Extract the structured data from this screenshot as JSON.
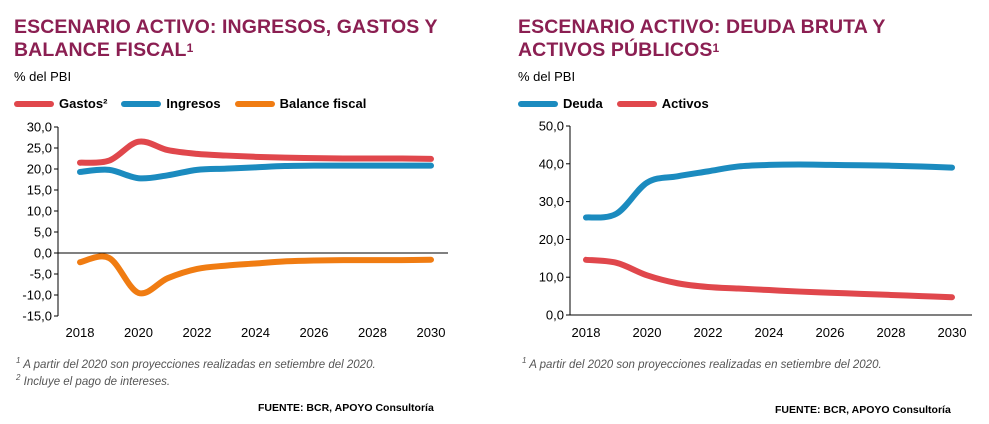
{
  "left": {
    "title_line1": "ESCENARIO ACTIVO: INGRESOS, GASTOS Y",
    "title_line2": "BALANCE FISCAL",
    "title_sup": "1",
    "unit": "% del PBI",
    "note1_sup": "1",
    "note1": " A partir del 2020 son proyecciones realizadas  en setiembre del 2020.",
    "note2_sup": "2",
    "note2": " Incluye el pago de intereses.",
    "source": "FUENTE: BCR, APOYO Consultoría"
  },
  "right": {
    "title_line1": "ESCENARIO ACTIVO: DEUDA BRUTA Y",
    "title_line2": "ACTIVOS PÚBLICOS",
    "title_sup": "1",
    "unit": "% del PBI",
    "note1_sup": "1",
    "note1": " A partir del 2020 son proyecciones realizadas  en setiembre del 2020.",
    "source": "FUENTE: BCR, APOYO Consultoría"
  },
  "chart_data": [
    {
      "type": "line",
      "x": [
        2018,
        2019,
        2020,
        2021,
        2022,
        2023,
        2024,
        2025,
        2026,
        2027,
        2028,
        2029,
        2030
      ],
      "xticks": [
        "2018",
        "2020",
        "2022",
        "2024",
        "2026",
        "2028",
        "2030"
      ],
      "yticks": [
        "30,0",
        "25,0",
        "20,0",
        "15,0",
        "10,0",
        "5,0",
        "0,0",
        "-5,0",
        "-10,0",
        "-15,0"
      ],
      "ylim": [
        -15,
        30
      ],
      "series": [
        {
          "name": "Gastos²",
          "color": "#e0474c",
          "values": [
            21.5,
            22.0,
            26.5,
            24.5,
            23.6,
            23.2,
            22.9,
            22.7,
            22.6,
            22.5,
            22.5,
            22.5,
            22.4
          ]
        },
        {
          "name": "Ingresos",
          "color": "#1b8bbf",
          "values": [
            19.3,
            19.8,
            17.8,
            18.5,
            19.8,
            20.1,
            20.4,
            20.7,
            20.8,
            20.8,
            20.8,
            20.8,
            20.8
          ]
        },
        {
          "name": "Balance fiscal",
          "color": "#f07c12",
          "values": [
            -2.2,
            -1.2,
            -9.5,
            -6.0,
            -3.8,
            -3.0,
            -2.5,
            -2.0,
            -1.8,
            -1.7,
            -1.7,
            -1.7,
            -1.6
          ]
        }
      ]
    },
    {
      "type": "line",
      "x": [
        2018,
        2019,
        2020,
        2021,
        2022,
        2023,
        2024,
        2025,
        2026,
        2027,
        2028,
        2029,
        2030
      ],
      "xticks": [
        "2018",
        "2020",
        "2022",
        "2024",
        "2026",
        "2028",
        "2030"
      ],
      "yticks": [
        "50,0",
        "40,0",
        "30,0",
        "20,0",
        "10,0",
        "0,0"
      ],
      "ylim": [
        0,
        50
      ],
      "series": [
        {
          "name": "Deuda",
          "color": "#1b8bbf",
          "values": [
            25.8,
            26.8,
            35.0,
            36.7,
            38.0,
            39.3,
            39.7,
            39.8,
            39.7,
            39.6,
            39.5,
            39.3,
            39.0
          ]
        },
        {
          "name": "Activos",
          "color": "#e0474c",
          "values": [
            14.6,
            13.8,
            10.5,
            8.4,
            7.4,
            7.0,
            6.6,
            6.2,
            5.9,
            5.6,
            5.3,
            5.0,
            4.7
          ]
        }
      ]
    }
  ]
}
